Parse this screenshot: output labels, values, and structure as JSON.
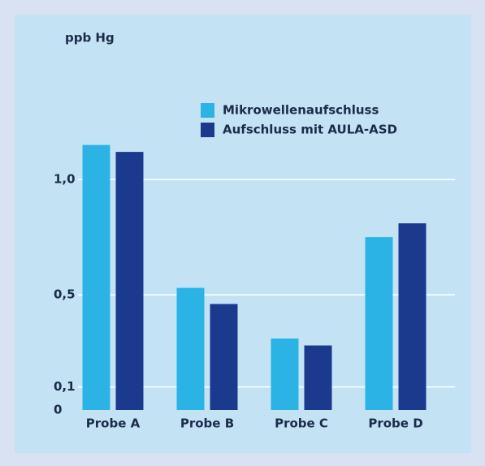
{
  "chart_data": {
    "type": "bar",
    "y_axis_label": "ppb Hg",
    "categories": [
      "Probe A",
      "Probe B",
      "Probe C",
      "Probe D"
    ],
    "series": [
      {
        "name": "Mikrowellenaufschluss",
        "color": "#2bb3e6",
        "values": [
          1.15,
          0.53,
          0.31,
          0.75
        ]
      },
      {
        "name": "Aufschluss mit AULA-ASD",
        "color": "#1b3a8e",
        "values": [
          1.12,
          0.46,
          0.28,
          0.81
        ]
      }
    ],
    "ylim": [
      0,
      1.3
    ],
    "yticks": [
      {
        "value": 0,
        "label": "0"
      },
      {
        "value": 0.1,
        "label": "0,1"
      },
      {
        "value": 0.5,
        "label": "0,5"
      },
      {
        "value": 1,
        "label": "1,0"
      }
    ],
    "grid": true
  }
}
